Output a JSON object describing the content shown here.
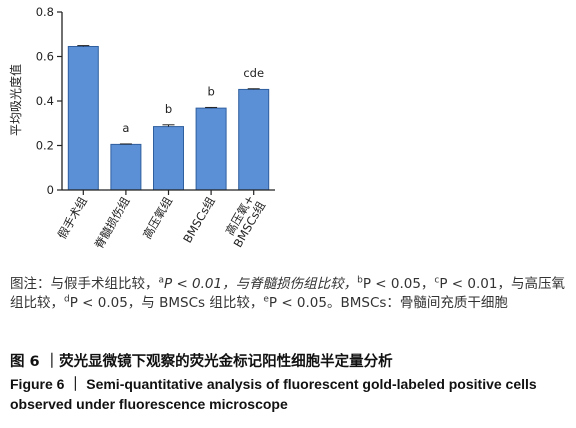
{
  "chart_data": {
    "type": "bar",
    "categories": [
      "假手术组",
      "脊髓损伤组",
      "高压氧组",
      "BMSCs组",
      "高压氧+\nBMSCs组"
    ],
    "values": [
      0.645,
      0.205,
      0.285,
      0.368,
      0.452
    ],
    "errors": [
      0.004,
      0.002,
      0.008,
      0.003,
      0.003
    ],
    "annotations": [
      "",
      "a",
      "b",
      "b",
      "cde"
    ],
    "ylabel": "平均吸光度值",
    "ylim": [
      0,
      0.8
    ],
    "yticks": [
      "0",
      "0.2",
      "0.4",
      "0.6",
      "0.8"
    ],
    "ytick_values": [
      0,
      0.2,
      0.4,
      0.6,
      0.8
    ],
    "bar_color": "#5b8fd6",
    "bar_edge_color": "#2f5f9e",
    "grid": false
  },
  "caption": {
    "note_prefix": "图注：与假手术组比较，",
    "m1": "a",
    "t1": "P < 0.01，与脊髓损伤组比较，",
    "m2": "b",
    "t2": "P < 0.05，",
    "m3": "c",
    "t3": "P < 0.01，与高压氧组比较，",
    "m4": "d",
    "t4": "P < 0.05，与 BMSCs 组比较，",
    "m5": "e",
    "t5": "P < 0.05。BMSCs：骨髓间充质干细胞",
    "figure_title_cn": "图 6 ｜荧光显微镜下观察的荧光金标记阳性细胞半定量分析",
    "figure_title_en": "Figure 6 ｜ Semi-quantitative analysis of fluorescent gold-labeled positive cells observed under fluorescence microscope"
  }
}
